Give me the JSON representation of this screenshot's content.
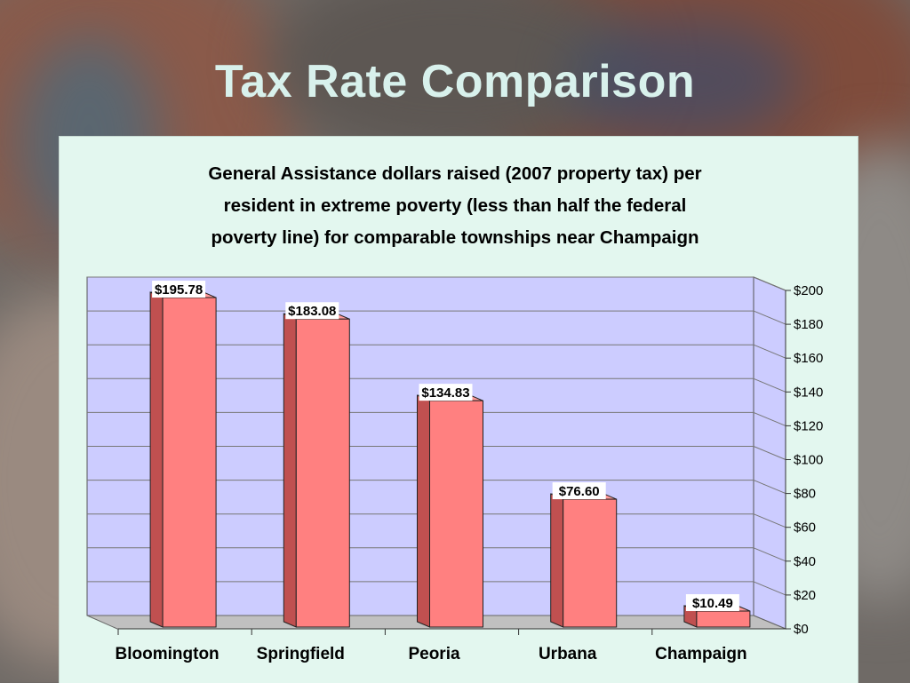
{
  "slide": {
    "title": "Tax Rate Comparison"
  },
  "colors": {
    "title_text": "#d8f1ec",
    "panel_bg": "#e3f7ef",
    "plot_bg": "#ccccff",
    "bar_front": "#ff8080",
    "bar_side": "#c05050",
    "floor": "#c0c0c0"
  },
  "chart_data": {
    "type": "bar",
    "title_lines": [
      "General Assistance dollars raised (2007 property tax) per",
      "resident in extreme poverty (less than half the federal",
      "poverty line) for comparable townships near Champaign"
    ],
    "categories": [
      "Bloomington",
      "Springfield",
      "Peoria",
      "Urbana",
      "Champaign"
    ],
    "values": [
      195.78,
      183.08,
      134.83,
      76.6,
      10.49
    ],
    "data_labels": [
      "$195.78",
      "$183.08",
      "$134.83",
      "$76.60",
      "$10.49"
    ],
    "ylim": [
      0,
      200
    ],
    "y_ticks": [
      0,
      20,
      40,
      60,
      80,
      100,
      120,
      140,
      160,
      180,
      200
    ],
    "y_tick_labels": [
      "$0",
      "$20",
      "$40",
      "$60",
      "$80",
      "$100",
      "$120",
      "$140",
      "$160",
      "$180",
      "$200"
    ],
    "y_axis_side": "right",
    "grid": true,
    "style": "3d",
    "legend": "none",
    "xlabel": "",
    "ylabel": ""
  }
}
